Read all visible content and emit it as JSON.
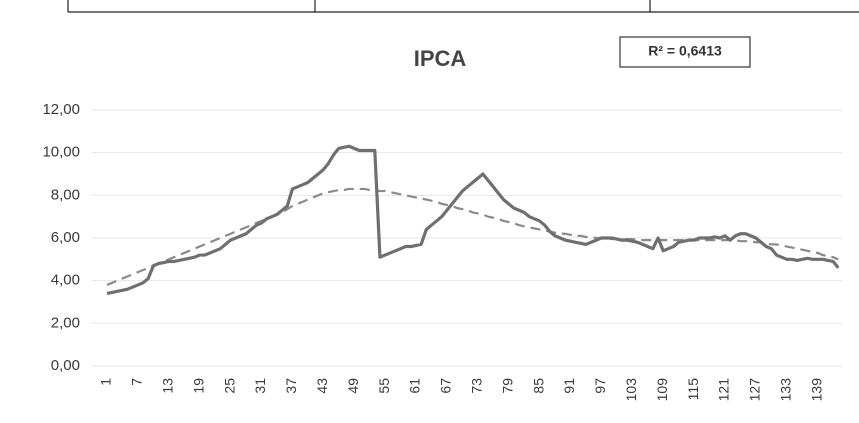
{
  "chart_data": {
    "type": "line",
    "title": "IPCA",
    "annotation": "R² = 0,6413",
    "categories": [
      1,
      null,
      null,
      null,
      null,
      null,
      7,
      null,
      null,
      null,
      null,
      null,
      13,
      null,
      null,
      null,
      null,
      null,
      19,
      null,
      null,
      null,
      null,
      null,
      25,
      null,
      null,
      null,
      null,
      null,
      31,
      null,
      null,
      null,
      null,
      null,
      37,
      null,
      null,
      null,
      null,
      null,
      43,
      null,
      null,
      null,
      null,
      null,
      49,
      null,
      null,
      null,
      null,
      null,
      55,
      null,
      null,
      null,
      null,
      null,
      61,
      null,
      null,
      null,
      null,
      null,
      67,
      null,
      null,
      null,
      null,
      null,
      73,
      null,
      null,
      null,
      null,
      null,
      79,
      null,
      null,
      null,
      null,
      null,
      85,
      null,
      null,
      null,
      null,
      null,
      91,
      null,
      null,
      null,
      null,
      null,
      97,
      null,
      null,
      null,
      null,
      null,
      103,
      null,
      null,
      null,
      null,
      null,
      109,
      null,
      null,
      null,
      null,
      null,
      115,
      null,
      null,
      null,
      null,
      null,
      121,
      null,
      null,
      null,
      null,
      null,
      127,
      null,
      null,
      null,
      null,
      null,
      133,
      null,
      null,
      null,
      null,
      null,
      139,
      null,
      null,
      null,
      null
    ],
    "series": [
      {
        "color": "#6f6f6f",
        "style": "solid",
        "values": [
          3.4,
          3.45,
          3.5,
          3.55,
          3.6,
          3.7,
          3.8,
          3.9,
          4.1,
          4.7,
          4.8,
          4.85,
          4.9,
          4.9,
          4.95,
          5.0,
          5.05,
          5.1,
          5.2,
          5.2,
          5.3,
          5.4,
          5.5,
          5.7,
          5.9,
          6.0,
          6.1,
          6.2,
          6.4,
          6.6,
          6.7,
          6.9,
          7.0,
          7.1,
          7.3,
          7.5,
          8.3,
          8.4,
          8.5,
          8.6,
          8.8,
          9.0,
          9.2,
          9.5,
          9.9,
          10.2,
          10.25,
          10.3,
          10.2,
          10.1,
          10.1,
          10.1,
          10.1,
          5.1,
          5.2,
          5.3,
          5.4,
          5.5,
          5.6,
          5.6,
          5.65,
          5.7,
          6.4,
          6.6,
          6.8,
          7.0,
          7.3,
          7.6,
          7.9,
          8.2,
          8.4,
          8.6,
          8.8,
          9.0,
          8.7,
          8.4,
          8.1,
          7.8,
          7.6,
          7.4,
          7.3,
          7.2,
          7.0,
          6.9,
          6.8,
          6.6,
          6.3,
          6.1,
          6.0,
          5.9,
          5.85,
          5.8,
          5.75,
          5.7,
          5.8,
          5.9,
          6.0,
          6.0,
          6.0,
          5.95,
          5.9,
          5.9,
          5.85,
          5.8,
          5.7,
          5.6,
          5.5,
          6.0,
          5.4,
          5.5,
          5.6,
          5.8,
          5.85,
          5.9,
          5.9,
          6.0,
          6.0,
          6.0,
          6.05,
          6.0,
          6.1,
          5.9,
          6.1,
          6.2,
          6.2,
          6.1,
          6.0,
          5.8,
          5.6,
          5.5,
          5.2,
          5.1,
          5.0,
          5.0,
          4.95,
          5.0,
          5.05,
          5.0,
          5.0,
          5.0,
          4.95,
          4.9,
          4.6
        ]
      },
      {
        "color": "#8a8a8a",
        "style": "dashed",
        "values": [
          3.8,
          3.9,
          4.0,
          4.1,
          4.2,
          4.3,
          4.4,
          4.5,
          4.6,
          4.7,
          4.8,
          4.9,
          5.0,
          5.1,
          5.2,
          5.3,
          5.4,
          5.5,
          5.6,
          5.7,
          5.8,
          5.9,
          6.0,
          6.1,
          6.2,
          6.3,
          6.4,
          6.5,
          6.6,
          6.7,
          6.8,
          6.9,
          7.0,
          7.1,
          7.2,
          7.35,
          7.5,
          7.6,
          7.7,
          7.8,
          7.9,
          8.0,
          8.1,
          8.15,
          8.2,
          8.25,
          8.25,
          8.3,
          8.3,
          8.3,
          8.3,
          8.25,
          8.25,
          8.2,
          8.2,
          8.15,
          8.1,
          8.05,
          8.0,
          7.95,
          7.9,
          7.85,
          7.8,
          7.75,
          7.7,
          7.6,
          7.55,
          7.5,
          7.4,
          7.35,
          7.3,
          7.2,
          7.15,
          7.1,
          7.0,
          6.95,
          6.9,
          6.8,
          6.75,
          6.7,
          6.6,
          6.55,
          6.5,
          6.45,
          6.4,
          6.35,
          6.3,
          6.25,
          6.2,
          6.2,
          6.15,
          6.1,
          6.1,
          6.05,
          6.05,
          6.0,
          6.0,
          6.0,
          5.95,
          5.95,
          5.95,
          5.95,
          5.95,
          5.9,
          5.9,
          5.9,
          5.9,
          5.9,
          5.9,
          5.9,
          5.9,
          5.9,
          5.9,
          5.9,
          5.9,
          5.9,
          5.9,
          5.9,
          5.9,
          5.9,
          5.9,
          5.9,
          5.9,
          5.85,
          5.85,
          5.85,
          5.8,
          5.8,
          5.75,
          5.7,
          5.7,
          5.65,
          5.6,
          5.55,
          5.5,
          5.45,
          5.4,
          5.35,
          5.3,
          5.2,
          5.15,
          5.1,
          5.0
        ]
      }
    ],
    "ylim": [
      0,
      12
    ],
    "yticks": [
      {
        "value": 0,
        "label": "0,00"
      },
      {
        "value": 2,
        "label": "2,00"
      },
      {
        "value": 4,
        "label": "4,00"
      },
      {
        "value": 6,
        "label": "6,00"
      },
      {
        "value": 8,
        "label": "8,00"
      },
      {
        "value": 10,
        "label": "10,00"
      },
      {
        "value": 12,
        "label": "12,00"
      }
    ],
    "grid": true
  }
}
